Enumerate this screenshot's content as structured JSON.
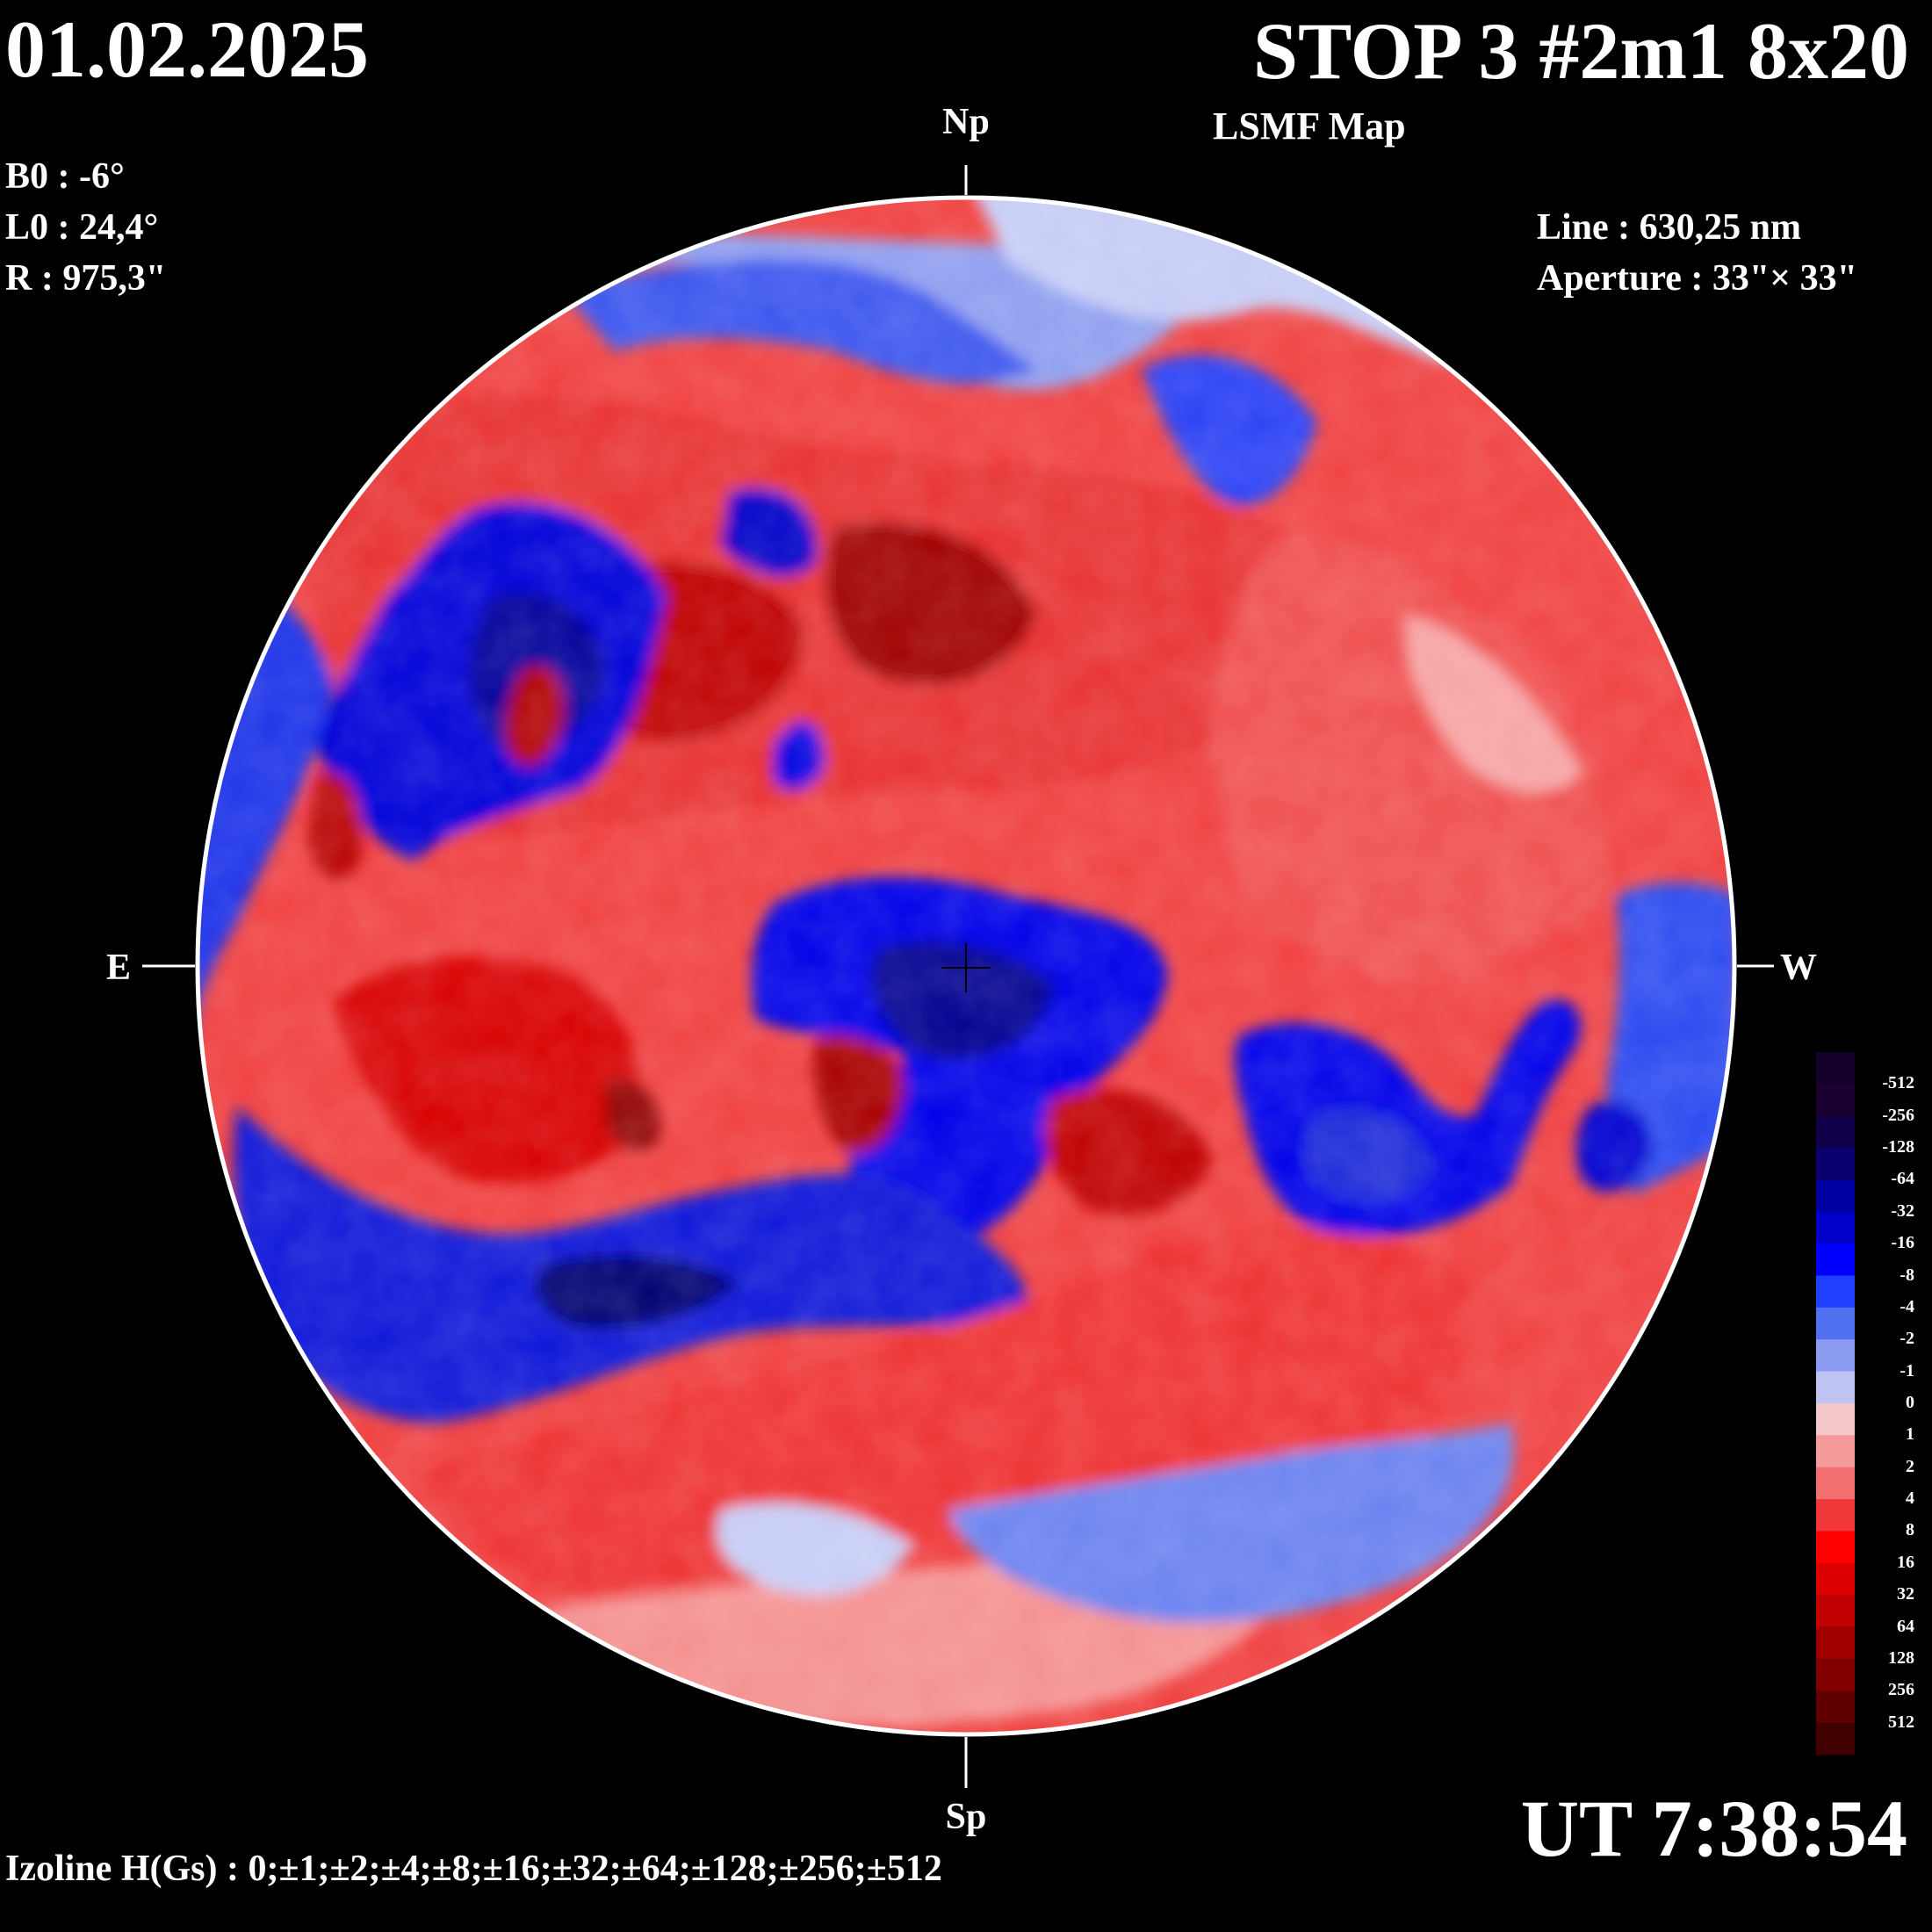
{
  "header": {
    "date": "01.02.2025",
    "title": "STOP 3 #2m1 8x20",
    "subtitle": "LSMF  Map"
  },
  "params": {
    "b0": "B0 : -6°",
    "l0": "L0 : 24,4°",
    "r": "R  : 975,3\""
  },
  "instrument": {
    "line": "Line :  630,25 nm",
    "aperture": "Aperture : 33\"× 33\""
  },
  "directions": {
    "north": "Np",
    "south": "Sp",
    "east": "E",
    "west": "W"
  },
  "time": "UT 7:38:54",
  "izoline": "Izoline H(Gs) : 0;±1;±2;±4;±8;±16;±32;±64;±128;±256;±512",
  "legend": {
    "levels": [
      "-512",
      "-256",
      "-128",
      "-64",
      "-32",
      "-16",
      "-8",
      "-4",
      "-2",
      "-1",
      "0",
      "1",
      "2",
      "4",
      "8",
      "16",
      "32",
      "64",
      "128",
      "256",
      "512"
    ],
    "colors": [
      "#1a0030",
      "#10004a",
      "#0a0070",
      "#0000a0",
      "#0000c8",
      "#0000ff",
      "#2040ff",
      "#5070f0",
      "#8a9af0",
      "#c0c4f4",
      "#f4c8c8",
      "#f59a9a",
      "#f27070",
      "#f03838",
      "#ff0000",
      "#dc0000",
      "#c00000",
      "#a00000",
      "#800000",
      "#600000",
      "#400000"
    ]
  },
  "map_data": {
    "type": "magnetogram",
    "units": "Gs",
    "blue_regions": [
      {
        "name": "north-polar-negative"
      },
      {
        "name": "upper-left-negative"
      },
      {
        "name": "central-negative"
      },
      {
        "name": "east-limb-negative"
      },
      {
        "name": "south-band-negative"
      },
      {
        "name": "right-negative"
      },
      {
        "name": "west-limb-negative"
      }
    ],
    "red_regions": [
      {
        "name": "northern-positive-band"
      },
      {
        "name": "western-positive"
      },
      {
        "name": "southern-positive-band"
      }
    ]
  }
}
